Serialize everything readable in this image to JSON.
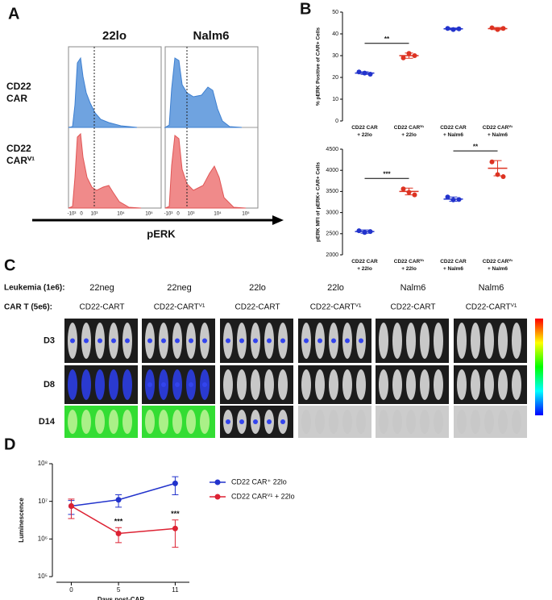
{
  "panel_labels": [
    "A",
    "B",
    "C",
    "D"
  ],
  "panel_a": {
    "column_titles": [
      "22lo",
      "Nalm6"
    ],
    "row_labels": [
      [
        "CD22",
        "CAR"
      ],
      [
        "CD22",
        "CARⱽ¹"
      ]
    ],
    "x_tick_labels": [
      "-10³",
      "0",
      "10³",
      "10⁴",
      "10⁵"
    ],
    "axis_label": "pERK"
  },
  "chart_data": [
    {
      "type": "dotplot",
      "y_label": "% pERK Positive of CAR+ Cells",
      "categories": [
        "CD22 CAR\n+ 22lo",
        "CD22 CARⱽ¹\n+ 22lo",
        "CD22 CAR\n+ Nalm6",
        "CD22 CARⱽ¹\n+ Nalm6"
      ],
      "colors": [
        "#2233cc",
        "#dd3322",
        "#2233cc",
        "#dd3322"
      ],
      "values": [
        [
          22.5,
          22,
          21.5
        ],
        [
          29,
          31,
          30
        ],
        [
          42.5,
          42,
          42.3
        ],
        [
          42.8,
          42,
          42.5
        ]
      ],
      "means": [
        22,
        30,
        42.3,
        42.4
      ],
      "errors": [
        0.6,
        1.2,
        0.4,
        0.5
      ],
      "ylim": [
        0,
        50
      ],
      "yticks": [
        0,
        10,
        20,
        30,
        40,
        50
      ],
      "annotations": [
        {
          "text": "**",
          "between": [
            0,
            1
          ]
        }
      ]
    },
    {
      "type": "dotplot",
      "y_label": "pERK MFI of pERK+ CAR+ Cells",
      "categories": [
        "CD22 CAR\n+ 22lo",
        "CD22 CARⱽ¹\n+ 22lo",
        "CD22 CAR\n+ Nalm6",
        "CD22 CARⱽ¹\n+ Nalm6"
      ],
      "colors": [
        "#2233cc",
        "#dd3322",
        "#2233cc",
        "#dd3322"
      ],
      "values": [
        [
          2570,
          2530,
          2550
        ],
        [
          3560,
          3480,
          3420
        ],
        [
          3370,
          3300,
          3310
        ],
        [
          4200,
          3900,
          3850
        ]
      ],
      "means": [
        2550,
        3500,
        3320,
        4050
      ],
      "errors": [
        40,
        80,
        50,
        180
      ],
      "ylim": [
        2000,
        4500
      ],
      "yticks": [
        2000,
        2500,
        3000,
        3500,
        4000,
        4500
      ],
      "annotations": [
        {
          "text": "***",
          "between": [
            0,
            1
          ]
        },
        {
          "text": "**",
          "between": [
            2,
            3
          ]
        }
      ]
    },
    {
      "type": "line",
      "y_label": "Luminescence",
      "x_label": "Days post-CAR",
      "ylog": true,
      "x": [
        0,
        5,
        11
      ],
      "xlim": [
        -2,
        12.5
      ],
      "xticks": [
        0,
        5,
        11
      ],
      "ylim": [
        100000,
        100000000
      ],
      "yticks": [
        {
          "value": 100000,
          "label": "10⁵"
        },
        {
          "value": 1000000,
          "label": "10⁶"
        },
        {
          "value": 10000000,
          "label": "10⁷"
        },
        {
          "value": 100000000,
          "label": "10⁸"
        }
      ],
      "series": [
        {
          "name": "CD22 CAR⁺ 22lo",
          "color": "#2233cc",
          "values": [
            7500000,
            11000000,
            30000000
          ],
          "errors": [
            3000000,
            4000000,
            15000000
          ]
        },
        {
          "name": "CD22 CARⱽ¹ + 22lo",
          "color": "#dd2233",
          "values": [
            7500000,
            1400000,
            1900000
          ],
          "errors": [
            4000000,
            600000,
            1300000
          ]
        }
      ],
      "annotations": [
        {
          "text": "***",
          "x_index": 1
        },
        {
          "text": "***",
          "x_index": 2
        }
      ]
    }
  ],
  "panel_c": {
    "leukemia_label": "Leukemia (1e6):",
    "leukemia": [
      "22neg",
      "22neg",
      "22lo",
      "22lo",
      "Nalm6",
      "Nalm6"
    ],
    "cart_label": "CAR T (5e6):",
    "cart": [
      "CD22-CART",
      "CD22-CARTⱽ¹",
      "CD22-CART",
      "CD22-CARTⱽ¹",
      "CD22-CART",
      "CD22-CARTⱽ¹"
    ],
    "days": [
      "D3",
      "D8",
      "D14"
    ]
  }
}
